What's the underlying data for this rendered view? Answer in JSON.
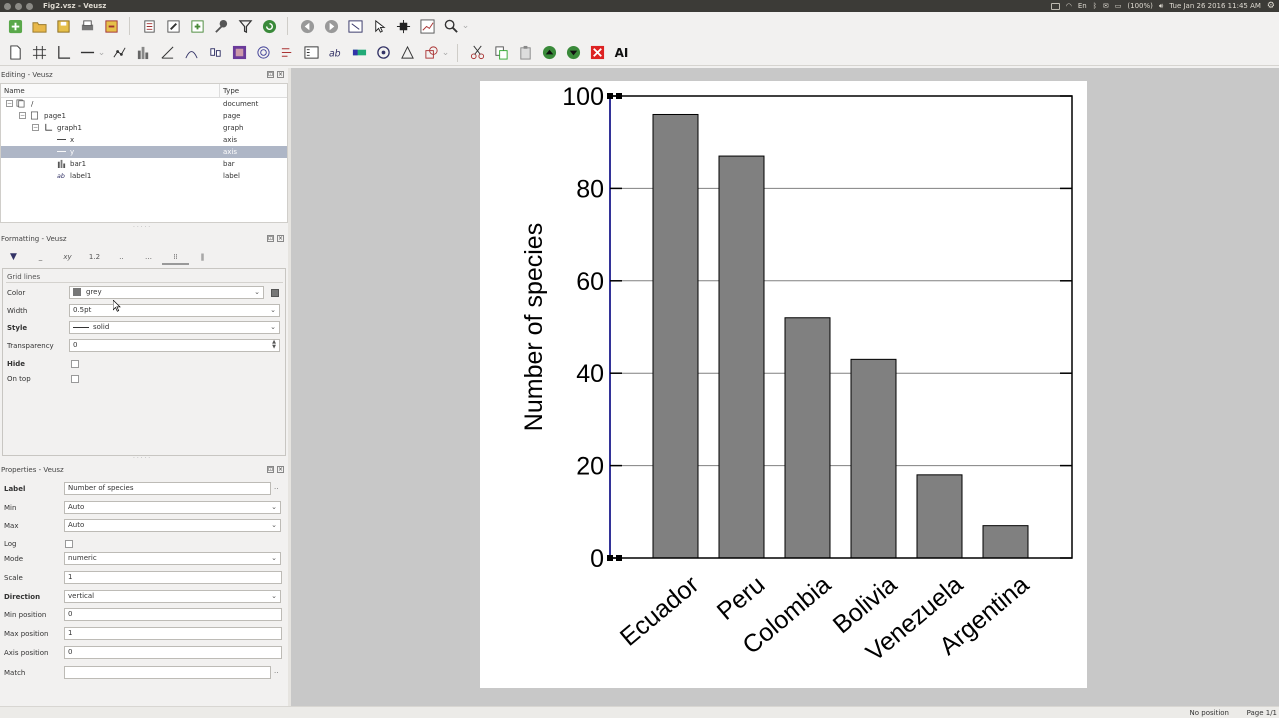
{
  "window": {
    "title": "Fig2.vsz - Veusz"
  },
  "system": {
    "lang": "En",
    "battery": "(100%)",
    "datetime": "Tue Jan 26 2016 11:45 AM"
  },
  "editing": {
    "title": "Editing - Veusz",
    "headers": {
      "name": "Name",
      "type": "Type"
    },
    "rows": [
      {
        "name": "/",
        "type": "document"
      },
      {
        "name": "page1",
        "type": "page"
      },
      {
        "name": "graph1",
        "type": "graph"
      },
      {
        "name": "x",
        "type": "axis"
      },
      {
        "name": "y",
        "type": "axis"
      },
      {
        "name": "bar1",
        "type": "bar"
      },
      {
        "name": "label1",
        "type": "label"
      }
    ]
  },
  "formatting": {
    "title": "Formatting - Veusz",
    "tabs": [
      "",
      "",
      "xy",
      "1.2",
      "",
      "",
      "",
      ""
    ],
    "group": "Grid lines",
    "rows": {
      "color": {
        "label": "Color",
        "value": "grey"
      },
      "width": {
        "label": "Width",
        "value": "0.5pt"
      },
      "style": {
        "label": "Style",
        "value": "solid"
      },
      "transparency": {
        "label": "Transparency",
        "value": "0"
      },
      "hide": {
        "label": "Hide"
      },
      "ontop": {
        "label": "On top"
      }
    }
  },
  "properties": {
    "title": "Properties - Veusz",
    "rows": [
      {
        "label": "Label",
        "value": "Number of species",
        "kind": "text"
      },
      {
        "label": "Min",
        "value": "Auto",
        "kind": "select"
      },
      {
        "label": "Max",
        "value": "Auto",
        "kind": "select"
      },
      {
        "label": "Log",
        "value": "",
        "kind": "check"
      },
      {
        "label": "Mode",
        "value": "numeric",
        "kind": "select"
      },
      {
        "label": "Scale",
        "value": "1",
        "kind": "text"
      },
      {
        "label": "Direction",
        "value": "vertical",
        "kind": "select"
      },
      {
        "label": "Min position",
        "value": "0",
        "kind": "text"
      },
      {
        "label": "Max position",
        "value": "1",
        "kind": "text"
      },
      {
        "label": "Axis position",
        "value": "0",
        "kind": "text"
      },
      {
        "label": "Match",
        "value": "",
        "kind": "text"
      }
    ]
  },
  "statusbar": {
    "position": "No position",
    "page": "Page 1/1"
  },
  "chart_data": {
    "type": "bar",
    "categories": [
      "Ecuador",
      "Peru",
      "Colombia",
      "Bolivia",
      "Venezuela",
      "Argentina"
    ],
    "values": [
      96,
      87,
      52,
      43,
      18,
      7
    ],
    "ylabel": "Number of species",
    "xlabel": "",
    "ylim": [
      0,
      100
    ],
    "yticks": [
      0,
      20,
      40,
      60,
      80,
      100
    ],
    "grid": true,
    "bar_color": "#808080",
    "grid_color": "#808080"
  }
}
